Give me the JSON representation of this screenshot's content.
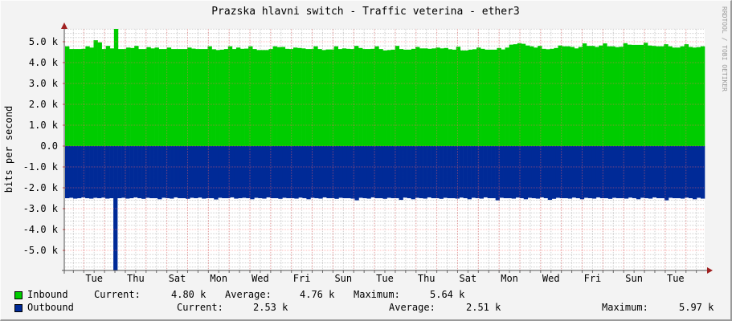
{
  "chart_data": {
    "type": "area",
    "title": "Prazska hlavni switch - Traffic veterina - ether3",
    "ylabel": "bits per second",
    "watermark": "RRDTOOL / TOBI OETIKER",
    "ylim": [
      -5900,
      5900
    ],
    "yticks": [
      {
        "value": 5000,
        "label": "5.0 k"
      },
      {
        "value": 4000,
        "label": "4.0 k"
      },
      {
        "value": 3000,
        "label": "3.0 k"
      },
      {
        "value": 2000,
        "label": "2.0 k"
      },
      {
        "value": 1000,
        "label": "1.0 k"
      },
      {
        "value": 0,
        "label": "0.0"
      },
      {
        "value": -1000,
        "label": "-1.0 k"
      },
      {
        "value": -2000,
        "label": "-2.0 k"
      },
      {
        "value": -3000,
        "label": "-3.0 k"
      },
      {
        "value": -4000,
        "label": "-4.0 k"
      },
      {
        "value": -5000,
        "label": "-5.0 k"
      }
    ],
    "xticks": [
      "Tue",
      "Thu",
      "Sat",
      "Mon",
      "Wed",
      "Fri",
      "Sun",
      "Tue",
      "Thu",
      "Sat",
      "Mon",
      "Wed",
      "Fri",
      "Sun",
      "Tue"
    ],
    "grid": true,
    "legend_position": "bottom",
    "series": [
      {
        "name": "Inbound",
        "color": "#00cc00",
        "values": [
          4.78,
          4.65,
          4.65,
          4.65,
          4.66,
          4.78,
          4.72,
          5.07,
          4.97,
          4.65,
          4.8,
          4.68,
          5.64,
          4.65,
          4.65,
          4.72,
          4.7,
          4.8,
          4.65,
          4.65,
          4.74,
          4.68,
          4.72,
          4.65,
          4.65,
          4.72,
          4.65,
          4.65,
          4.65,
          4.65,
          4.72,
          4.67,
          4.65,
          4.65,
          4.65,
          4.78,
          4.64,
          4.6,
          4.62,
          4.65,
          4.78,
          4.65,
          4.72,
          4.66,
          4.67,
          4.78,
          4.65,
          4.6,
          4.6,
          4.6,
          4.65,
          4.78,
          4.74,
          4.75,
          4.66,
          4.65,
          4.72,
          4.7,
          4.68,
          4.65,
          4.65,
          4.78,
          4.65,
          4.6,
          4.63,
          4.63,
          4.78,
          4.65,
          4.68,
          4.66,
          4.65,
          4.8,
          4.7,
          4.65,
          4.65,
          4.66,
          4.78,
          4.65,
          4.58,
          4.6,
          4.62,
          4.8,
          4.65,
          4.62,
          4.62,
          4.66,
          4.75,
          4.68,
          4.68,
          4.66,
          4.68,
          4.72,
          4.68,
          4.7,
          4.64,
          4.62,
          4.76,
          4.58,
          4.58,
          4.62,
          4.64,
          4.72,
          4.66,
          4.62,
          4.62,
          4.62,
          4.7,
          4.63,
          4.72,
          4.86,
          4.88,
          4.93,
          4.9,
          4.82,
          4.78,
          4.72,
          4.8,
          4.66,
          4.64,
          4.66,
          4.7,
          4.82,
          4.78,
          4.78,
          4.75,
          4.68,
          4.75,
          4.92,
          4.8,
          4.8,
          4.75,
          4.82,
          4.92,
          4.78,
          4.78,
          4.74,
          4.76,
          4.93,
          4.86,
          4.85,
          4.85,
          4.85,
          4.95,
          4.82,
          4.8,
          4.78,
          4.78,
          4.88,
          4.78,
          4.72,
          4.72,
          4.78,
          4.88,
          4.75,
          4.72,
          4.74,
          4.78
        ],
        "current": "4.80 k",
        "average": "4.76 k",
        "maximum": "5.64 k"
      },
      {
        "name": "Outbound",
        "color": "#002a97",
        "values": [
          -2.5,
          -2.48,
          -2.52,
          -2.5,
          -2.46,
          -2.5,
          -2.52,
          -2.48,
          -2.5,
          -2.47,
          -2.52,
          -2.5,
          -5.97,
          -2.5,
          -2.48,
          -2.52,
          -2.5,
          -2.46,
          -2.5,
          -2.53,
          -2.48,
          -2.5,
          -2.5,
          -2.55,
          -2.48,
          -2.5,
          -2.52,
          -2.46,
          -2.5,
          -2.5,
          -2.53,
          -2.48,
          -2.5,
          -2.47,
          -2.52,
          -2.5,
          -2.5,
          -2.56,
          -2.48,
          -2.5,
          -2.5,
          -2.46,
          -2.52,
          -2.5,
          -2.48,
          -2.5,
          -2.55,
          -2.48,
          -2.5,
          -2.52,
          -2.46,
          -2.5,
          -2.5,
          -2.53,
          -2.48,
          -2.5,
          -2.5,
          -2.52,
          -2.47,
          -2.5,
          -2.55,
          -2.48,
          -2.5,
          -2.52,
          -2.46,
          -2.5,
          -2.5,
          -2.53,
          -2.48,
          -2.5,
          -2.5,
          -2.52,
          -2.6,
          -2.48,
          -2.5,
          -2.52,
          -2.46,
          -2.5,
          -2.5,
          -2.53,
          -2.48,
          -2.5,
          -2.5,
          -2.58,
          -2.47,
          -2.5,
          -2.55,
          -2.48,
          -2.5,
          -2.52,
          -2.46,
          -2.5,
          -2.5,
          -2.53,
          -2.48,
          -2.5,
          -2.5,
          -2.52,
          -2.47,
          -2.5,
          -2.55,
          -2.48,
          -2.5,
          -2.52,
          -2.46,
          -2.5,
          -2.5,
          -2.6,
          -2.48,
          -2.5,
          -2.5,
          -2.52,
          -2.47,
          -2.5,
          -2.55,
          -2.48,
          -2.5,
          -2.52,
          -2.46,
          -2.5,
          -2.58,
          -2.53,
          -2.48,
          -2.5,
          -2.5,
          -2.52,
          -2.47,
          -2.5,
          -2.55,
          -2.48,
          -2.5,
          -2.52,
          -2.46,
          -2.5,
          -2.5,
          -2.53,
          -2.48,
          -2.5,
          -2.5,
          -2.52,
          -2.47,
          -2.5,
          -2.55,
          -2.48,
          -2.5,
          -2.52,
          -2.46,
          -2.5,
          -2.5,
          -2.6,
          -2.48,
          -2.5,
          -2.5,
          -2.52,
          -2.47,
          -2.5,
          -2.55,
          -2.48,
          -2.52
        ],
        "current": "2.53 k",
        "average": "2.51 k",
        "maximum": "5.97 k"
      }
    ]
  },
  "legend": {
    "current_label": "Current:",
    "average_label": "Average:",
    "maximum_label": "Maximum:"
  }
}
